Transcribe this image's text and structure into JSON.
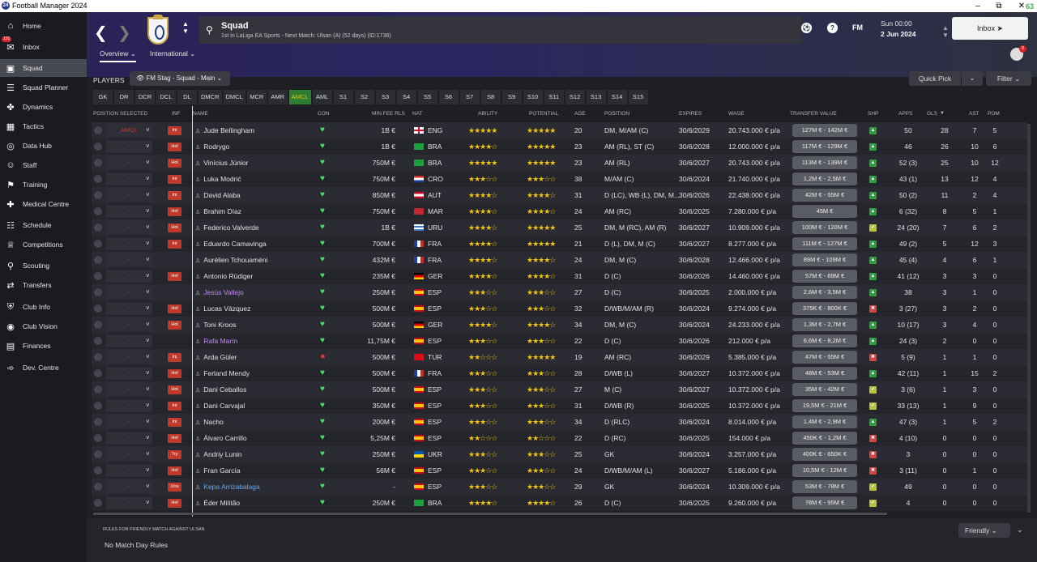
{
  "app": {
    "title": "Football Manager 2024",
    "status": "63"
  },
  "sidebar": {
    "items": [
      {
        "label": "Home",
        "icon": "home-icon"
      },
      {
        "label": "Inbox",
        "icon": "inbox-icon",
        "badge": "151"
      },
      {
        "label": "Squad",
        "icon": "shirt-icon",
        "active": true
      },
      {
        "label": "Squad Planner",
        "icon": "planner-icon"
      },
      {
        "label": "Dynamics",
        "icon": "dynamics-icon"
      },
      {
        "label": "Tactics",
        "icon": "tactics-icon"
      },
      {
        "label": "Data Hub",
        "icon": "datahub-icon"
      },
      {
        "label": "Staff",
        "icon": "staff-icon"
      },
      {
        "label": "Training",
        "icon": "training-icon"
      },
      {
        "label": "Medical Centre",
        "icon": "medical-icon"
      },
      {
        "label": "Schedule",
        "icon": "calendar-icon"
      },
      {
        "label": "Competitions",
        "icon": "trophy-icon"
      },
      {
        "label": "Scouting",
        "icon": "search-icon"
      },
      {
        "label": "Transfers",
        "icon": "transfers-icon"
      },
      {
        "label": "Club Info",
        "icon": "shield-icon"
      },
      {
        "label": "Club Vision",
        "icon": "vision-icon"
      },
      {
        "label": "Finances",
        "icon": "finances-icon"
      },
      {
        "label": "Dev. Centre",
        "icon": "dev-centre-icon"
      }
    ]
  },
  "header": {
    "title": "Squad",
    "subtitle": "1st in LaLiga EA Sports - Next Match: Ulsan (A) (52 days) (ID:1736)",
    "date_time": "Sun 00:00",
    "date": "2 Jun 2024",
    "continue": "▲▼",
    "inbox_label": "Inbox",
    "fm_label": "FM",
    "avatar_badge": "8",
    "tabs": [
      "Overview",
      "International"
    ]
  },
  "filters": {
    "players_label": "PLAYERS",
    "view": "FM Stag - Squad - Main",
    "quick_pick": "Quick Pick",
    "filter": "Filter",
    "positions": [
      "GK",
      "DR",
      "DCR",
      "DCL",
      "DL",
      "DMCR",
      "DMCL",
      "MCR",
      "AMR",
      "AMCL",
      "AML",
      "S1",
      "S2",
      "S3",
      "S4",
      "S5",
      "S6",
      "S7",
      "S8",
      "S9",
      "S10",
      "S11",
      "S12",
      "S13",
      "S14",
      "S15"
    ],
    "active_position": "AMCL"
  },
  "table": {
    "headers": {
      "pos_sel": "POSITION SELECTED",
      "inf": "INF",
      "name": "NAME",
      "con": "CON",
      "fee": "MIN FEE RLS",
      "nat": "NAT",
      "ability": "ABILITY",
      "potential": "POTENTIAL",
      "age": "AGE",
      "position": "POSITION",
      "expires": "EXPIRES",
      "wage": "WAGE",
      "tv": "TRANSFER VALUE",
      "shp": "SHP",
      "apps": "APPS",
      "gls": "GLS",
      "ast": "AST",
      "pom": "POM"
    },
    "rows": [
      {
        "possel": "AMCL",
        "inf": "Int",
        "name": "Jude Bellingham",
        "style": "",
        "con": "ok",
        "fee": "1B €",
        "nat": "ENG",
        "flag": "eng",
        "ab": 4.5,
        "po": 5,
        "age": "20",
        "pos": "DM, M/AM (C)",
        "exp": "30/6/2029",
        "wage": "20.743.000 € p/a",
        "tv": "127M € - 142M €",
        "shp": "good",
        "apps": "50",
        "gls": "28",
        "ast": "7",
        "pom": "5"
      },
      {
        "possel": "-",
        "inf": "Hol",
        "name": "Rodrygo",
        "style": "",
        "con": "ok",
        "fee": "1B €",
        "nat": "BRA",
        "flag": "bra",
        "ab": 4,
        "po": 4.5,
        "age": "23",
        "pos": "AM (RL), ST (C)",
        "exp": "30/6/2028",
        "wage": "12.000.000 € p/a",
        "tv": "117M € - 129M €",
        "shp": "good",
        "apps": "46",
        "gls": "26",
        "ast": "10",
        "pom": "6"
      },
      {
        "possel": "-",
        "inf": "Hol",
        "name": "Vinícius Júnior",
        "style": "",
        "con": "ok",
        "fee": "750M €",
        "nat": "BRA",
        "flag": "bra",
        "ab": 4.5,
        "po": 4.5,
        "age": "23",
        "pos": "AM (RL)",
        "exp": "30/6/2027",
        "wage": "20.743.000 € p/a",
        "tv": "113M € - 139M €",
        "shp": "good",
        "apps": "52 (3)",
        "gls": "25",
        "ast": "10",
        "pom": "12"
      },
      {
        "possel": "-",
        "inf": "Int",
        "name": "Luka Modrić",
        "style": "",
        "con": "ok",
        "fee": "750M €",
        "nat": "CRO",
        "flag": "cro",
        "ab": 3,
        "po": 3,
        "age": "38",
        "pos": "M/AM (C)",
        "exp": "30/6/2024",
        "wage": "21.740.000 € p/a",
        "tv": "1,2M € - 2,5M €",
        "shp": "ok",
        "apps": "43 (1)",
        "gls": "13",
        "ast": "12",
        "pom": "4"
      },
      {
        "possel": "-",
        "inf": "Int",
        "name": "David Alaba",
        "style": "",
        "con": "ok",
        "fee": "850M €",
        "nat": "AUT",
        "flag": "aut",
        "ab": 4,
        "po": 4,
        "age": "31",
        "pos": "D (LC), WB (L), DM, M...",
        "exp": "30/6/2026",
        "wage": "22.438.000 € p/a",
        "tv": "42M € - 55M €",
        "shp": "good",
        "apps": "50 (2)",
        "gls": "11",
        "ast": "2",
        "pom": "4"
      },
      {
        "possel": "-",
        "inf": "Hol",
        "name": "Brahim Díaz",
        "style": "",
        "con": "ok",
        "fee": "750M €",
        "nat": "MAR",
        "flag": "mar",
        "ab": 3.5,
        "po": 3.5,
        "age": "24",
        "pos": "AM (RC)",
        "exp": "30/6/2025",
        "wage": "7.280.000 € p/a",
        "tv": "45M €",
        "shp": "good",
        "apps": "6 (32)",
        "gls": "8",
        "ast": "5",
        "pom": "1"
      },
      {
        "possel": "-",
        "inf": "Hol",
        "name": "Federico Valverde",
        "style": "",
        "con": "ok",
        "fee": "1B €",
        "nat": "URU",
        "flag": "uru",
        "ab": 4,
        "po": 4.5,
        "age": "25",
        "pos": "DM, M (RC), AM (R)",
        "exp": "30/6/2027",
        "wage": "10.909.000 € p/a",
        "tv": "100M € - 120M €",
        "shp": "yel",
        "apps": "24 (20)",
        "gls": "7",
        "ast": "6",
        "pom": "2"
      },
      {
        "possel": "-",
        "inf": "Int",
        "name": "Eduardo Camavinga",
        "style": "",
        "con": "ok",
        "fee": "700M €",
        "nat": "FRA",
        "flag": "fra",
        "ab": 4,
        "po": 5,
        "age": "21",
        "pos": "D (L), DM, M (C)",
        "exp": "30/6/2027",
        "wage": "8.277.000 € p/a",
        "tv": "111M € - 127M €",
        "shp": "good",
        "apps": "49 (2)",
        "gls": "5",
        "ast": "12",
        "pom": "3"
      },
      {
        "possel": "-",
        "inf": "",
        "name": "Aurélien Tchouaméni",
        "style": "",
        "con": "ok",
        "fee": "432M €",
        "nat": "FRA",
        "flag": "fra",
        "ab": 4,
        "po": 4,
        "age": "24",
        "pos": "DM, M (C)",
        "exp": "30/6/2028",
        "wage": "12.466.000 € p/a",
        "tv": "89M € - 109M €",
        "shp": "good",
        "apps": "45 (4)",
        "gls": "4",
        "ast": "6",
        "pom": "1"
      },
      {
        "possel": "-",
        "inf": "Hol",
        "name": "Antonio Rüdiger",
        "style": "",
        "con": "ok",
        "fee": "235M €",
        "nat": "GER",
        "flag": "ger",
        "ab": 4,
        "po": 4,
        "age": "31",
        "pos": "D (C)",
        "exp": "30/6/2026",
        "wage": "14.460.000 € p/a",
        "tv": "57M € - 69M €",
        "shp": "good",
        "apps": "41 (12)",
        "gls": "3",
        "ast": "3",
        "pom": "0"
      },
      {
        "possel": "-",
        "inf": "",
        "name": "Jesús Vallejo",
        "style": "purple",
        "con": "ok",
        "fee": "250M €",
        "nat": "ESP",
        "flag": "esp",
        "ab": 2.5,
        "po": 2.5,
        "age": "27",
        "pos": "D (C)",
        "exp": "30/6/2025",
        "wage": "2.000.000 € p/a",
        "tv": "2,6M € - 3,5M €",
        "shp": "good",
        "apps": "38",
        "gls": "3",
        "ast": "1",
        "pom": "0"
      },
      {
        "possel": "-",
        "inf": "Hol",
        "name": "Lucas Vázquez",
        "style": "",
        "con": "ok",
        "fee": "500M €",
        "nat": "ESP",
        "flag": "esp",
        "ab": 2.5,
        "po": 2.5,
        "age": "32",
        "pos": "D/WB/M/AM (R)",
        "exp": "30/6/2024",
        "wage": "9.274.000 € p/a",
        "tv": "375K € - 800K €",
        "shp": "bad",
        "apps": "3 (27)",
        "gls": "3",
        "ast": "2",
        "pom": "0"
      },
      {
        "possel": "-",
        "inf": "Hol",
        "name": "Toni Kroos",
        "style": "",
        "con": "ok",
        "fee": "500M €",
        "nat": "GER",
        "flag": "ger",
        "ab": 3.5,
        "po": 3.5,
        "age": "34",
        "pos": "DM, M (C)",
        "exp": "30/6/2024",
        "wage": "24.233.000 € p/a",
        "tv": "1,3M € - 2,7M €",
        "shp": "good",
        "apps": "10 (17)",
        "gls": "3",
        "ast": "4",
        "pom": "0"
      },
      {
        "possel": "-",
        "inf": "",
        "name": "Rafa Marín",
        "style": "purple",
        "con": "ok",
        "fee": "11,75M €",
        "nat": "ESP",
        "flag": "esp",
        "ab": 2.5,
        "po": 3,
        "age": "22",
        "pos": "D (C)",
        "exp": "30/6/2026",
        "wage": "212.000 € p/a",
        "tv": "6,6M € - 8,2M €",
        "shp": "good",
        "apps": "24 (3)",
        "gls": "2",
        "ast": "0",
        "pom": "0"
      },
      {
        "possel": "-",
        "inf": "Inj",
        "name": "Arda Güler",
        "style": "",
        "con": "inj",
        "fee": "500M €",
        "nat": "TUR",
        "flag": "tur",
        "ab": 2,
        "po": 5,
        "age": "19",
        "pos": "AM (RC)",
        "exp": "30/6/2029",
        "wage": "5.385.000 € p/a",
        "tv": "47M € - 55M €",
        "shp": "bad",
        "apps": "5 (9)",
        "gls": "1",
        "ast": "1",
        "pom": "0"
      },
      {
        "possel": "-",
        "inf": "Hol",
        "name": "Ferland Mendy",
        "style": "",
        "con": "ok",
        "fee": "500M €",
        "nat": "FRA",
        "flag": "fra",
        "ab": 3,
        "po": 3,
        "age": "28",
        "pos": "D/WB (L)",
        "exp": "30/6/2027",
        "wage": "10.372.000 € p/a",
        "tv": "48M € - 53M €",
        "shp": "good",
        "apps": "42 (11)",
        "gls": "1",
        "ast": "15",
        "pom": "2"
      },
      {
        "possel": "-",
        "inf": "Hol",
        "name": "Dani Ceballos",
        "style": "",
        "con": "ok",
        "fee": "500M €",
        "nat": "ESP",
        "flag": "esp",
        "ab": 3,
        "po": 3,
        "age": "27",
        "pos": "M (C)",
        "exp": "30/6/2027",
        "wage": "10.372.000 € p/a",
        "tv": "35M € - 42M €",
        "shp": "yel",
        "apps": "3 (6)",
        "gls": "1",
        "ast": "3",
        "pom": "0"
      },
      {
        "possel": "-",
        "inf": "Int",
        "name": "Dani Carvajal",
        "style": "",
        "con": "ok",
        "fee": "350M €",
        "nat": "ESP",
        "flag": "esp",
        "ab": 2.5,
        "po": 2.5,
        "age": "31",
        "pos": "D/WB (R)",
        "exp": "30/6/2025",
        "wage": "10.372.000 € p/a",
        "tv": "19,5M € - 21M €",
        "shp": "yel",
        "apps": "33 (13)",
        "gls": "1",
        "ast": "9",
        "pom": "0"
      },
      {
        "possel": "-",
        "inf": "Int",
        "name": "Nacho",
        "style": "",
        "con": "ok",
        "fee": "200M €",
        "nat": "ESP",
        "flag": "esp",
        "ab": 3,
        "po": 3,
        "age": "34",
        "pos": "D (RLC)",
        "exp": "30/6/2024",
        "wage": "8.014.000 € p/a",
        "tv": "1,4M € - 2,9M €",
        "shp": "good",
        "apps": "47 (3)",
        "gls": "1",
        "ast": "5",
        "pom": "2"
      },
      {
        "possel": "-",
        "inf": "Hol",
        "name": "Álvaro Carrillo",
        "style": "",
        "con": "ok",
        "fee": "5,25M €",
        "nat": "ESP",
        "flag": "esp",
        "ab": 1.5,
        "po": 2,
        "age": "22",
        "pos": "D (RC)",
        "exp": "30/6/2025",
        "wage": "154.000 € p/a",
        "tv": "450K € - 1,2M €",
        "shp": "bad",
        "apps": "4 (10)",
        "gls": "0",
        "ast": "0",
        "pom": "0"
      },
      {
        "possel": "-",
        "inf": "Try",
        "name": "Andriy Lunin",
        "style": "",
        "con": "ok",
        "fee": "250M €",
        "nat": "UKR",
        "flag": "ukr",
        "ab": 2.5,
        "po": 2.5,
        "age": "25",
        "pos": "GK",
        "exp": "30/6/2024",
        "wage": "3.257.000 € p/a",
        "tv": "400K € - 650K €",
        "shp": "bad",
        "apps": "3",
        "gls": "0",
        "ast": "0",
        "pom": "0"
      },
      {
        "possel": "-",
        "inf": "Hol",
        "name": "Fran García",
        "style": "",
        "con": "ok",
        "fee": "56M €",
        "nat": "ESP",
        "flag": "esp",
        "ab": 2.5,
        "po": 2.5,
        "age": "24",
        "pos": "D/WB/M/AM (L)",
        "exp": "30/6/2027",
        "wage": "5.186.000 € p/a",
        "tv": "10,5M € - 12M €",
        "shp": "bad",
        "apps": "3 (11)",
        "gls": "0",
        "ast": "1",
        "pom": "0"
      },
      {
        "possel": "-",
        "inf": "Una",
        "name": "Kepa Arrizabalaga",
        "style": "blue",
        "con": "ok",
        "fee": "-",
        "nat": "ESP",
        "flag": "esp",
        "ab": 3,
        "po": 3,
        "age": "29",
        "pos": "GK",
        "exp": "30/6/2024",
        "wage": "10.309.000 € p/a",
        "tv": "53M € - 78M €",
        "shp": "yel",
        "apps": "49",
        "gls": "0",
        "ast": "0",
        "pom": "0"
      },
      {
        "possel": "-",
        "inf": "Hol",
        "name": "Éder Militão",
        "style": "",
        "con": "ok",
        "fee": "250M €",
        "nat": "BRA",
        "flag": "bra",
        "ab": 3.5,
        "po": 3.5,
        "age": "26",
        "pos": "D (C)",
        "exp": "30/6/2025",
        "wage": "9.260.000 € p/a",
        "tv": "78M € - 95M €",
        "shp": "yel",
        "apps": "4",
        "gls": "0",
        "ast": "0",
        "pom": "0"
      }
    ]
  },
  "bottom": {
    "rules_title": "RULES FOR FRIENDLY MATCH AGAINST ULSAN",
    "rules_value": "No Match Day Rules",
    "match_type": "Friendly"
  },
  "colors": {
    "good": "#2e9e3e",
    "ok": "#2e9e3e",
    "yel": "#b6c23a",
    "bad": "#d84343",
    "accent": "#2e7d32"
  }
}
